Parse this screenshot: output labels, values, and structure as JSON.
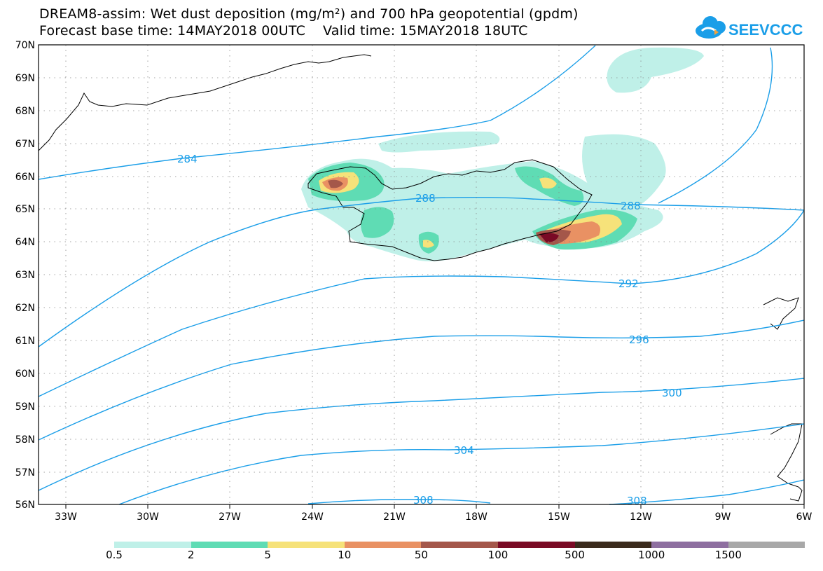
{
  "title": {
    "line1": "DREAM8-assim: Wet dust deposition (mg/m²) and 700 hPa geopotential (gpdm)",
    "line2": "Forecast base time: 14MAY2018 00UTC    Valid time: 15MAY2018 18UTC"
  },
  "logo": {
    "text": "SEEVCCC",
    "icon": "cloud-icon",
    "color": "#1a9ee8"
  },
  "axes": {
    "lat_labels": [
      "70N",
      "69N",
      "68N",
      "67N",
      "66N",
      "65N",
      "64N",
      "63N",
      "62N",
      "61N",
      "60N",
      "59N",
      "58N",
      "57N",
      "56N"
    ],
    "lon_labels": [
      "33W",
      "30W",
      "27W",
      "24W",
      "21W",
      "18W",
      "15W",
      "12W",
      "9W",
      "6W"
    ]
  },
  "contours": {
    "color": "#1a9ee8",
    "labels": [
      "284",
      "288",
      "288",
      "292",
      "296",
      "300",
      "304",
      "308",
      "308"
    ]
  },
  "colorbar": {
    "colors": [
      "#bff0e8",
      "#5fdcb4",
      "#f6e27a",
      "#e99163",
      "#a4574a",
      "#7a0a25",
      "#3a2a1c",
      "#8e6fa0",
      "#a8a8a8"
    ],
    "labels": [
      "0.5",
      "2",
      "5",
      "10",
      "50",
      "100",
      "500",
      "1000",
      "1500"
    ]
  }
}
